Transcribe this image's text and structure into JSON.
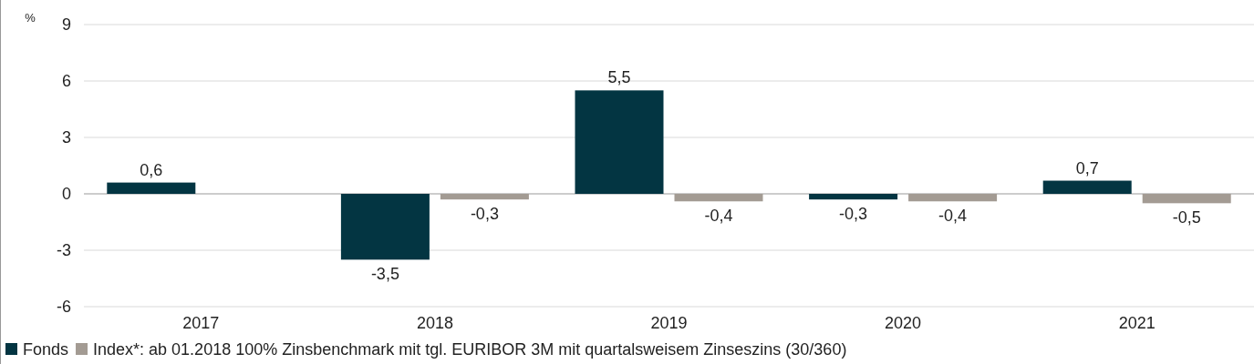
{
  "chart_data": {
    "type": "bar",
    "ylabel": "%",
    "categories": [
      "2017",
      "2018",
      "2019",
      "2020",
      "2021"
    ],
    "series": [
      {
        "name": "Fonds",
        "color": "#033542",
        "values": [
          0.6,
          -3.5,
          5.5,
          -0.3,
          0.7
        ],
        "value_labels": [
          "0,6",
          "-3,5",
          "5,5",
          "-0,3",
          "0,7"
        ]
      },
      {
        "name": "Index*: ab 01.2018 100% Zinsbenchmark mit tgl. EURIBOR 3M mit quartalsweisem Zinseszins (30/360)",
        "color": "#a39b93",
        "values": [
          null,
          -0.3,
          -0.4,
          -0.4,
          -0.5
        ],
        "value_labels": [
          null,
          "-0,3",
          "-0,4",
          "-0,4",
          "-0,5"
        ]
      }
    ],
    "ylim": [
      -6,
      9
    ],
    "yticks": [
      -6,
      -3,
      0,
      3,
      6,
      9
    ],
    "grid": "y",
    "legend": "bottom"
  }
}
